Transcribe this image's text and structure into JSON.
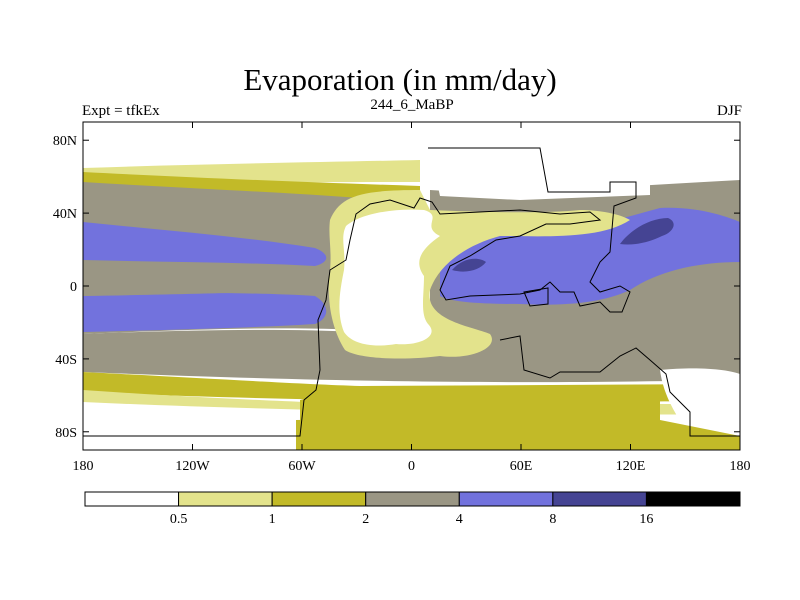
{
  "title": "Evaporation (in mm/day)",
  "left_label": "Expt = tfkEx",
  "center_label": "244_6_MaBP",
  "right_label": "DJF",
  "colors": {
    "band0": "#ffffff",
    "band1": "#e3e38c",
    "band2": "#c2ba28",
    "band3": "#9a9684",
    "band4": "#7272dd",
    "band5": "#454493",
    "band6": "#000000",
    "coast": "#000000"
  },
  "chart_data": {
    "type": "heatmap",
    "title": "Evaporation (in mm/day)",
    "xlabel": "",
    "ylabel": "",
    "x_ticks": [
      "180",
      "120W",
      "60W",
      "0",
      "60E",
      "120E",
      "180"
    ],
    "y_ticks": [
      "80N",
      "40N",
      "0",
      "40S",
      "80S"
    ],
    "x_range": [
      -180,
      180
    ],
    "y_range": [
      -90,
      90
    ],
    "colorbar": {
      "labels": [
        "0.5",
        "1",
        "2",
        "4",
        "8",
        "16"
      ],
      "levels": [
        0.5,
        1,
        2,
        4,
        8,
        16
      ]
    }
  }
}
